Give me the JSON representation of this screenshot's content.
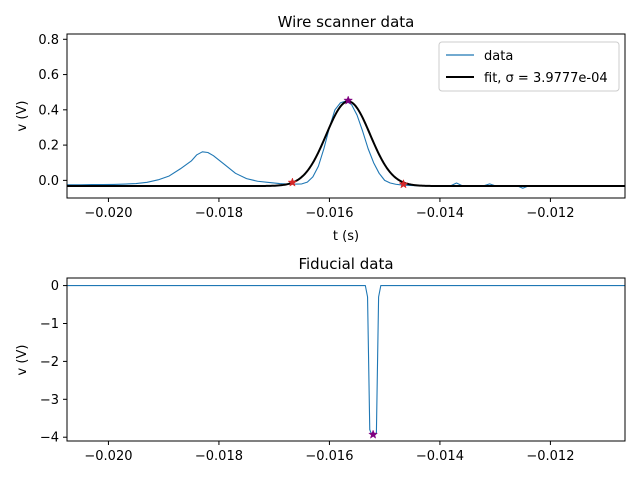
{
  "chart_data": [
    {
      "type": "line",
      "title": "Wire scanner data",
      "xlabel": "t (s)",
      "ylabel": "v (V)",
      "xlim": [
        -0.02075,
        -0.01065
      ],
      "ylim": [
        -0.1,
        0.83
      ],
      "x_ticks": [
        -0.02,
        -0.018,
        -0.016,
        -0.014,
        -0.012
      ],
      "x_tick_labels": [
        "−0.020",
        "−0.018",
        "−0.016",
        "−0.014",
        "−0.012"
      ],
      "y_ticks": [
        0.0,
        0.2,
        0.4,
        0.6,
        0.8
      ],
      "y_tick_labels": [
        "0.0",
        "0.2",
        "0.4",
        "0.6",
        "0.8"
      ],
      "legend_position": "top-right",
      "series": [
        {
          "name": "data",
          "color": "#1f77b4",
          "x": [
            -0.02075,
            -0.0205,
            -0.0203,
            -0.0201,
            -0.0199,
            -0.0197,
            -0.0195,
            -0.0193,
            -0.0191,
            -0.0189,
            -0.0187,
            -0.0185,
            -0.0184,
            -0.0183,
            -0.0182,
            -0.0181,
            -0.0179,
            -0.0177,
            -0.0175,
            -0.0173,
            -0.0171,
            -0.0169,
            -0.0167,
            -0.0165,
            -0.0164,
            -0.0163,
            -0.0162,
            -0.0161,
            -0.016,
            -0.0159,
            -0.0158,
            -0.0157,
            -0.0156,
            -0.0155,
            -0.0154,
            -0.0153,
            -0.0152,
            -0.0151,
            -0.015,
            -0.0149,
            -0.0148,
            -0.0147,
            -0.0146,
            -0.0144,
            -0.0142,
            -0.014,
            -0.0138,
            -0.0137,
            -0.0136,
            -0.0134,
            -0.0132,
            -0.0131,
            -0.013,
            -0.0128,
            -0.0126,
            -0.0125,
            -0.0124,
            -0.0122,
            -0.012,
            -0.0118,
            -0.0116,
            -0.0114,
            -0.0112,
            -0.011,
            -0.0108,
            -0.01065
          ],
          "y": [
            -0.025,
            -0.025,
            -0.024,
            -0.024,
            -0.023,
            -0.021,
            -0.018,
            -0.011,
            0.003,
            0.025,
            0.065,
            0.11,
            0.145,
            0.162,
            0.158,
            0.14,
            0.09,
            0.04,
            0.01,
            -0.005,
            -0.012,
            -0.018,
            -0.022,
            -0.02,
            -0.01,
            0.02,
            0.08,
            0.18,
            0.3,
            0.4,
            0.44,
            0.45,
            0.43,
            0.37,
            0.28,
            0.18,
            0.1,
            0.04,
            0.0,
            -0.015,
            -0.022,
            -0.026,
            -0.028,
            -0.03,
            -0.03,
            -0.031,
            -0.03,
            -0.015,
            -0.03,
            -0.031,
            -0.03,
            -0.02,
            -0.031,
            -0.032,
            -0.031,
            -0.045,
            -0.032,
            -0.031,
            -0.032,
            -0.031,
            -0.032,
            -0.031,
            -0.032,
            -0.032,
            -0.031,
            -0.032
          ]
        },
        {
          "name": "fit, σ = 3.9777e-04",
          "color": "#000000",
          "model": "gaussian",
          "amplitude": 0.48,
          "center": -0.01566,
          "sigma": 0.00039777,
          "offset": -0.032
        }
      ],
      "markers": [
        {
          "x": -0.01566,
          "y": 0.453,
          "color": "#800080"
        },
        {
          "x": -0.01667,
          "y": -0.012,
          "color": "#d62728"
        },
        {
          "x": -0.01466,
          "y": -0.022,
          "color": "#d62728"
        }
      ]
    },
    {
      "type": "line",
      "title": "Fiducial data",
      "xlabel": "",
      "ylabel": "v (V)",
      "xlim": [
        -0.02075,
        -0.01065
      ],
      "ylim": [
        -4.1,
        0.2
      ],
      "x_ticks": [
        -0.02,
        -0.018,
        -0.016,
        -0.014,
        -0.012
      ],
      "x_tick_labels": [
        "−0.020",
        "−0.018",
        "−0.016",
        "−0.014",
        "−0.012"
      ],
      "y_ticks": [
        0,
        -1,
        -2,
        -3,
        -4
      ],
      "y_tick_labels": [
        "0",
        "−1",
        "−2",
        "−3",
        "−4"
      ],
      "series": [
        {
          "name": "",
          "color": "#1f77b4",
          "x": [
            -0.02075,
            -0.01535,
            -0.01531,
            -0.01527,
            -0.01523,
            -0.01519,
            -0.01515,
            -0.01511,
            -0.01507,
            -0.01503,
            -0.01065
          ],
          "y": [
            0.0,
            0.0,
            -0.3,
            -3.8,
            -3.95,
            -3.95,
            -3.9,
            -0.3,
            0.0,
            0.0,
            0.0
          ]
        }
      ],
      "markers": [
        {
          "x": -0.01521,
          "y": -3.93,
          "color": "#800080"
        }
      ]
    }
  ]
}
